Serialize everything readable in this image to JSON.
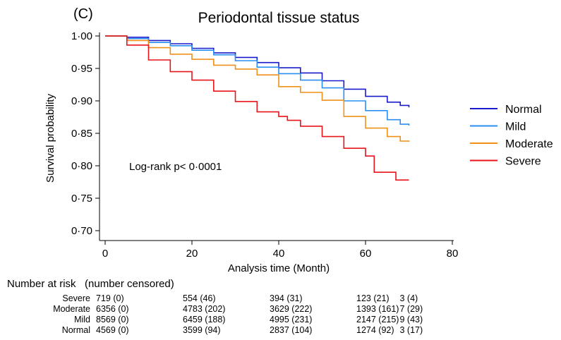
{
  "chart_data": {
    "type": "line",
    "panel_label": "(C)",
    "title": "Periodontal tissue status",
    "xlabel": "Analysis time (Month)",
    "ylabel": "Survival probability",
    "xlim": [
      0,
      80
    ],
    "ylim": [
      0.7,
      1.0
    ],
    "x_ticks": [
      "0",
      "20",
      "40",
      "60",
      "80"
    ],
    "y_ticks": [
      "0·70",
      "0·75",
      "0·80",
      "0·85",
      "0·90",
      "0·95",
      "1·00"
    ],
    "annotation": "Log-rank p< 0·0001",
    "legend_position": "right",
    "series": [
      {
        "name": "Normal",
        "color": "#1a1acc",
        "points": [
          [
            0,
            1.0
          ],
          [
            5,
            0.998
          ],
          [
            10,
            0.993
          ],
          [
            15,
            0.988
          ],
          [
            20,
            0.981
          ],
          [
            25,
            0.974
          ],
          [
            30,
            0.967
          ],
          [
            35,
            0.959
          ],
          [
            40,
            0.951
          ],
          [
            45,
            0.943
          ],
          [
            50,
            0.931
          ],
          [
            55,
            0.918
          ],
          [
            60,
            0.907
          ],
          [
            65,
            0.898
          ],
          [
            68,
            0.893
          ],
          [
            70,
            0.89
          ]
        ]
      },
      {
        "name": "Mild",
        "color": "#2a8ff0",
        "points": [
          [
            0,
            1.0
          ],
          [
            5,
            0.996
          ],
          [
            10,
            0.99
          ],
          [
            15,
            0.985
          ],
          [
            20,
            0.978
          ],
          [
            25,
            0.971
          ],
          [
            30,
            0.962
          ],
          [
            35,
            0.952
          ],
          [
            40,
            0.942
          ],
          [
            45,
            0.932
          ],
          [
            50,
            0.92
          ],
          [
            55,
            0.9
          ],
          [
            60,
            0.885
          ],
          [
            65,
            0.871
          ],
          [
            68,
            0.864
          ],
          [
            70,
            0.862
          ]
        ]
      },
      {
        "name": "Moderate",
        "color": "#f0901a",
        "points": [
          [
            0,
            1.0
          ],
          [
            5,
            0.993
          ],
          [
            10,
            0.982
          ],
          [
            15,
            0.972
          ],
          [
            20,
            0.964
          ],
          [
            25,
            0.955
          ],
          [
            30,
            0.949
          ],
          [
            35,
            0.94
          ],
          [
            40,
            0.922
          ],
          [
            45,
            0.913
          ],
          [
            50,
            0.901
          ],
          [
            55,
            0.876
          ],
          [
            60,
            0.858
          ],
          [
            65,
            0.845
          ],
          [
            68,
            0.838
          ],
          [
            70,
            0.837
          ]
        ]
      },
      {
        "name": "Severe",
        "color": "#e8141a",
        "points": [
          [
            0,
            1.0
          ],
          [
            5,
            0.986
          ],
          [
            10,
            0.963
          ],
          [
            15,
            0.945
          ],
          [
            20,
            0.932
          ],
          [
            25,
            0.915
          ],
          [
            30,
            0.899
          ],
          [
            35,
            0.883
          ],
          [
            40,
            0.876
          ],
          [
            42,
            0.87
          ],
          [
            45,
            0.861
          ],
          [
            50,
            0.845
          ],
          [
            55,
            0.827
          ],
          [
            60,
            0.815
          ],
          [
            62,
            0.79
          ],
          [
            66,
            0.79
          ],
          [
            67,
            0.778
          ],
          [
            70,
            0.778
          ]
        ]
      }
    ]
  },
  "risk_table": {
    "header": "Number at risk   (number censored)",
    "rows": [
      {
        "label": "Severe",
        "values": [
          "719 (0)",
          "554 (46)",
          "394 (31)",
          "123 (21)",
          "3 (4)"
        ]
      },
      {
        "label": "Moderate",
        "values": [
          "6356 (0)",
          "4783 (202)",
          "3629 (222)",
          "1393 (161)",
          "7 (29)"
        ]
      },
      {
        "label": "Mild",
        "values": [
          "8569 (0)",
          "6459 (188)",
          "4995 (231)",
          "2147 (215)",
          "9 (43)"
        ]
      },
      {
        "label": "Normal",
        "values": [
          "4569 (0)",
          "3599 (94)",
          "2837 (104)",
          "1274 (92)",
          "3 (17)"
        ]
      }
    ]
  }
}
